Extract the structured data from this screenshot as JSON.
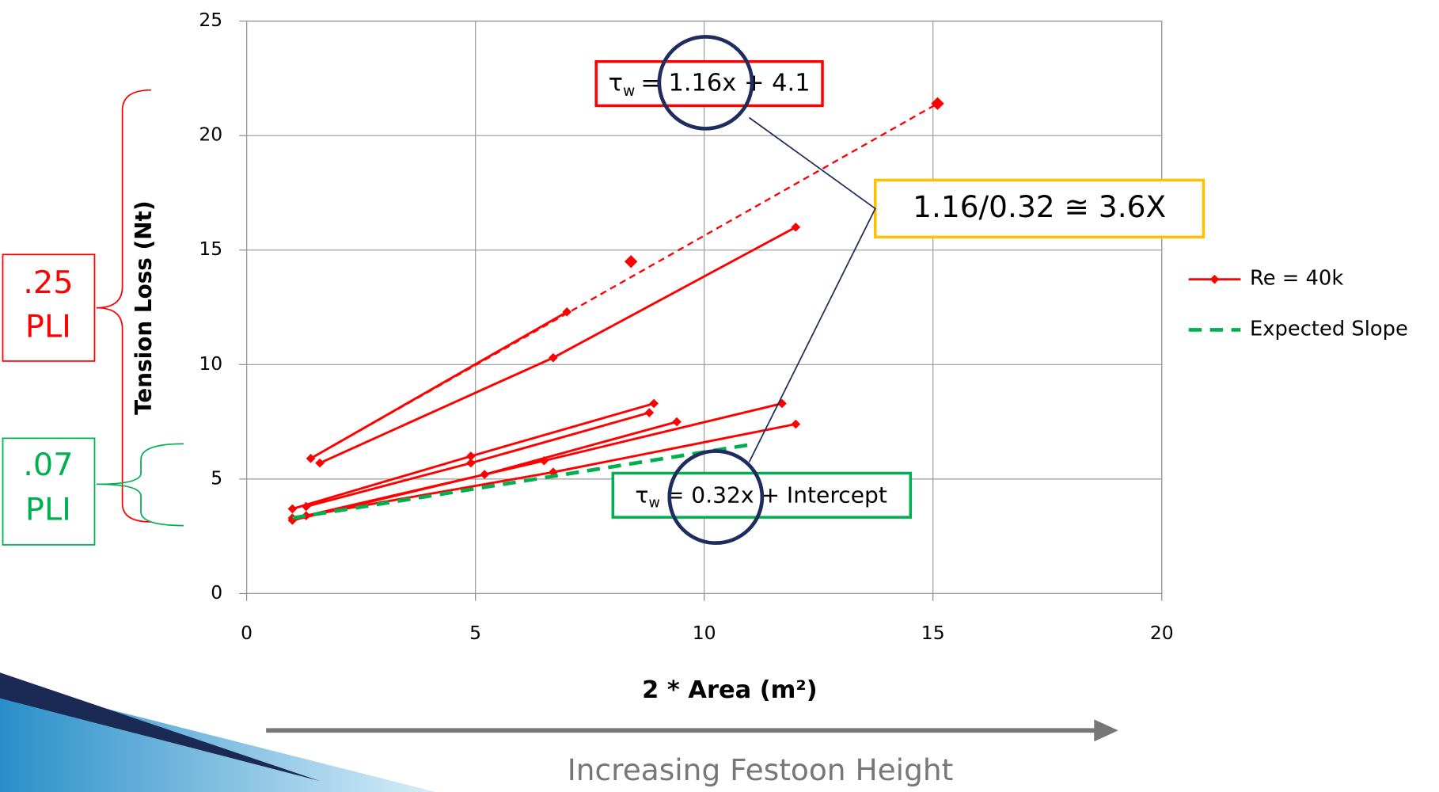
{
  "chart_data": {
    "type": "line",
    "x_label": "2 * Area (m²)",
    "y_label": "Tension Loss (Nt)",
    "xlim": [
      0,
      20
    ],
    "xticks": [
      0,
      5,
      10,
      15,
      20
    ],
    "ylim": [
      0,
      25
    ],
    "yticks": [
      0,
      5,
      10,
      15,
      20,
      25
    ],
    "grid": true,
    "legend": "right",
    "series": [
      {
        "name": "Re = 40k",
        "color": "#ff0000",
        "marker": "diamond",
        "x": [
          1.4,
          7.0,
          null,
          1.6,
          6.7,
          12.0,
          null,
          1.0,
          4.9,
          8.9,
          null,
          1.3,
          4.9,
          8.8,
          null,
          1.0,
          5.2,
          9.4,
          null,
          1.3,
          6.5,
          11.7,
          null,
          1.0,
          6.7,
          12.0,
          null,
          8.4,
          null,
          15.1
        ],
        "values": [
          5.9,
          12.3,
          null,
          5.7,
          10.3,
          16.0,
          null,
          3.7,
          6.0,
          8.3,
          null,
          3.8,
          5.7,
          7.9,
          null,
          3.2,
          5.2,
          7.5,
          null,
          3.4,
          5.8,
          8.3,
          null,
          3.3,
          5.3,
          7.4,
          null,
          14.5,
          null,
          21.4
        ]
      },
      {
        "name": "Expected Slope",
        "color": "#00b050",
        "dash": true,
        "x": [
          1.0,
          11.0
        ],
        "values": [
          3.3,
          6.5
        ]
      }
    ],
    "trendline": {
      "color": "#ff0000",
      "x": [
        1.4,
        15.1
      ],
      "values": [
        5.9,
        21.4
      ]
    },
    "annotations": {
      "fit_equation": {
        "symbol": "τ",
        "sub": "w",
        "text": "= 1.16x + 4.1",
        "color": "#ff0000"
      },
      "ratio": {
        "text": "1.16/0.32 ≅ 3.6X",
        "color": "#ffc000"
      },
      "expected_equation": {
        "symbol": "τ",
        "sub": "w",
        "text": "= 0.32x + Intercept",
        "color": "#00b050"
      },
      "measured_pli": {
        "value": ".25",
        "unit": "PLI",
        "color": "#ff0000"
      },
      "expected_pli": {
        "value": ".07",
        "unit": "PLI",
        "color": "#00b050"
      },
      "arrow_label": "Increasing Festoon Height"
    }
  }
}
